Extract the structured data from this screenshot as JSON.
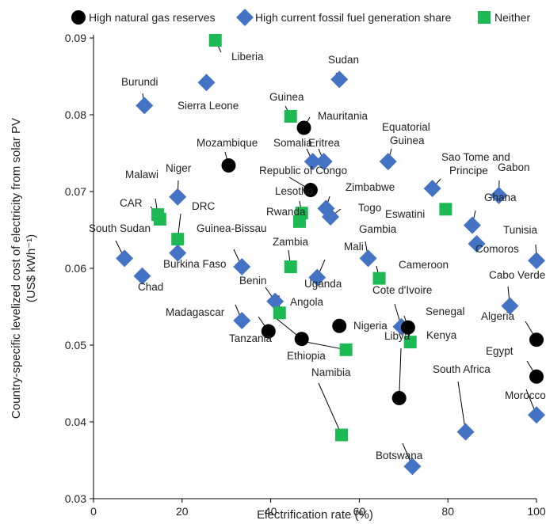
{
  "chart_data": {
    "type": "scatter",
    "xlabel": "Electrification rate (%)",
    "ylabel": [
      "Country-specific levelized cost of electricity from solar PV",
      "(US$ kWh⁻¹)"
    ],
    "xlim": [
      0,
      100
    ],
    "ylim": [
      0.03,
      0.09
    ],
    "x_ticks": [
      "0",
      "20",
      "40",
      "60",
      "80",
      "100"
    ],
    "y_ticks": [
      "0.03",
      "0.04",
      "0.05",
      "0.06",
      "0.07",
      "0.08",
      "0.09"
    ],
    "grid": false,
    "legend_position": "top",
    "series": [
      {
        "name": "High natural gas reserves",
        "marker": "circle",
        "color": "#000000"
      },
      {
        "name": "High current fossil fuel generation share",
        "marker": "diamond",
        "color": "#4472C4"
      },
      {
        "name": "Neither",
        "marker": "square",
        "color": "#1DB954"
      }
    ],
    "points": [
      {
        "label": "Liberia",
        "x": 27.5,
        "y": 0.0897,
        "series": 2
      },
      {
        "label": "Burundi",
        "x": 11.5,
        "y": 0.0812,
        "series": 1
      },
      {
        "label": "Sierra Leone",
        "x": 25.5,
        "y": 0.0842,
        "series": 1
      },
      {
        "label": "Sudan",
        "x": 55.5,
        "y": 0.0846,
        "series": 1
      },
      {
        "label": "Guinea",
        "x": 44.5,
        "y": 0.0798,
        "series": 2
      },
      {
        "label": "Mauritania",
        "x": 47.5,
        "y": 0.0783,
        "series": 0
      },
      {
        "label": "Mozambique",
        "x": 30.5,
        "y": 0.0734,
        "series": 0
      },
      {
        "label": "Somalia",
        "x": 49.5,
        "y": 0.0739,
        "series": 1
      },
      {
        "label": "Eritrea",
        "x": 52,
        "y": 0.0739,
        "series": 1
      },
      {
        "label": "Equatorial Guinea",
        "x": 66.5,
        "y": 0.0739,
        "series": 1
      },
      {
        "label": "Republic of Congo",
        "x": 49,
        "y": 0.0702,
        "series": 0
      },
      {
        "label": "Niger",
        "x": 19,
        "y": 0.0693,
        "series": 1
      },
      {
        "label": "Malawi",
        "x": 14.5,
        "y": 0.067,
        "series": 2
      },
      {
        "label": "CAR",
        "x": 15,
        "y": 0.0664,
        "series": 2
      },
      {
        "label": "DRC",
        "x": 19,
        "y": 0.0638,
        "series": 2
      },
      {
        "label": "Lesotho",
        "x": 47,
        "y": 0.0672,
        "series": 2
      },
      {
        "label": "Rwanda",
        "x": 46.5,
        "y": 0.0661,
        "series": 2
      },
      {
        "label": "Zimbabwe",
        "x": 52.5,
        "y": 0.0678,
        "series": 1
      },
      {
        "label": "Togo",
        "x": 53.5,
        "y": 0.0667,
        "series": 1
      },
      {
        "label": "Sao Tome and Principe",
        "x": 76.5,
        "y": 0.0704,
        "series": 1
      },
      {
        "label": "Gabon",
        "x": 91.5,
        "y": 0.0695,
        "series": 1
      },
      {
        "label": "Eswatini",
        "x": 79.5,
        "y": 0.0677,
        "series": 2
      },
      {
        "label": "Ghana",
        "x": 85.5,
        "y": 0.0656,
        "series": 1
      },
      {
        "label": "Comoros",
        "x": 86.5,
        "y": 0.0632,
        "series": 1
      },
      {
        "label": "Tunisia",
        "x": 100,
        "y": 0.061,
        "series": 1
      },
      {
        "label": "South Sudan",
        "x": 7,
        "y": 0.0613,
        "series": 1
      },
      {
        "label": "Chad",
        "x": 11,
        "y": 0.059,
        "series": 1
      },
      {
        "label": "Burkina Faso",
        "x": 19,
        "y": 0.062,
        "series": 1
      },
      {
        "label": "Guinea-Bissau",
        "x": 33.5,
        "y": 0.0602,
        "series": 1
      },
      {
        "label": "Zambia",
        "x": 44.5,
        "y": 0.0602,
        "series": 2
      },
      {
        "label": "Mali",
        "x": 50.5,
        "y": 0.0588,
        "series": 1
      },
      {
        "label": "Gambia",
        "x": 62,
        "y": 0.0613,
        "series": 1
      },
      {
        "label": "Cameroon",
        "x": 64.5,
        "y": 0.0587,
        "series": 2
      },
      {
        "label": "Benin",
        "x": 41,
        "y": 0.0557,
        "series": 1
      },
      {
        "label": "Uganda",
        "x": 42,
        "y": 0.0542,
        "series": 2
      },
      {
        "label": "Cabo Verde",
        "x": 94,
        "y": 0.0551,
        "series": 1
      },
      {
        "label": "Madagascar",
        "x": 33.5,
        "y": 0.0532,
        "series": 1
      },
      {
        "label": "Tanzania",
        "x": 39.5,
        "y": 0.0518,
        "series": 0
      },
      {
        "label": "Angola",
        "x": 47,
        "y": 0.0508,
        "series": 0
      },
      {
        "label": "Nigeria",
        "x": 55.5,
        "y": 0.0525,
        "series": 0
      },
      {
        "label": "Ethiopia",
        "x": 57,
        "y": 0.0494,
        "series": 2
      },
      {
        "label": "Cote d'Ivoire",
        "x": 69.5,
        "y": 0.0524,
        "series": 1
      },
      {
        "label": "Senegal",
        "x": 71,
        "y": 0.0523,
        "series": 0
      },
      {
        "label": "Kenya",
        "x": 71.5,
        "y": 0.0504,
        "series": 2
      },
      {
        "label": "Algeria",
        "x": 100,
        "y": 0.0507,
        "series": 0
      },
      {
        "label": "Egypt",
        "x": 100,
        "y": 0.0459,
        "series": 0
      },
      {
        "label": "Libya",
        "x": 69,
        "y": 0.0431,
        "series": 0
      },
      {
        "label": "South Africa",
        "x": 84,
        "y": 0.0387,
        "series": 1
      },
      {
        "label": "Morocco",
        "x": 100,
        "y": 0.0409,
        "series": 1
      },
      {
        "label": "Namibia",
        "x": 56,
        "y": 0.0383,
        "series": 2
      },
      {
        "label": "Botswana",
        "x": 72,
        "y": 0.0342,
        "series": 1
      }
    ]
  }
}
